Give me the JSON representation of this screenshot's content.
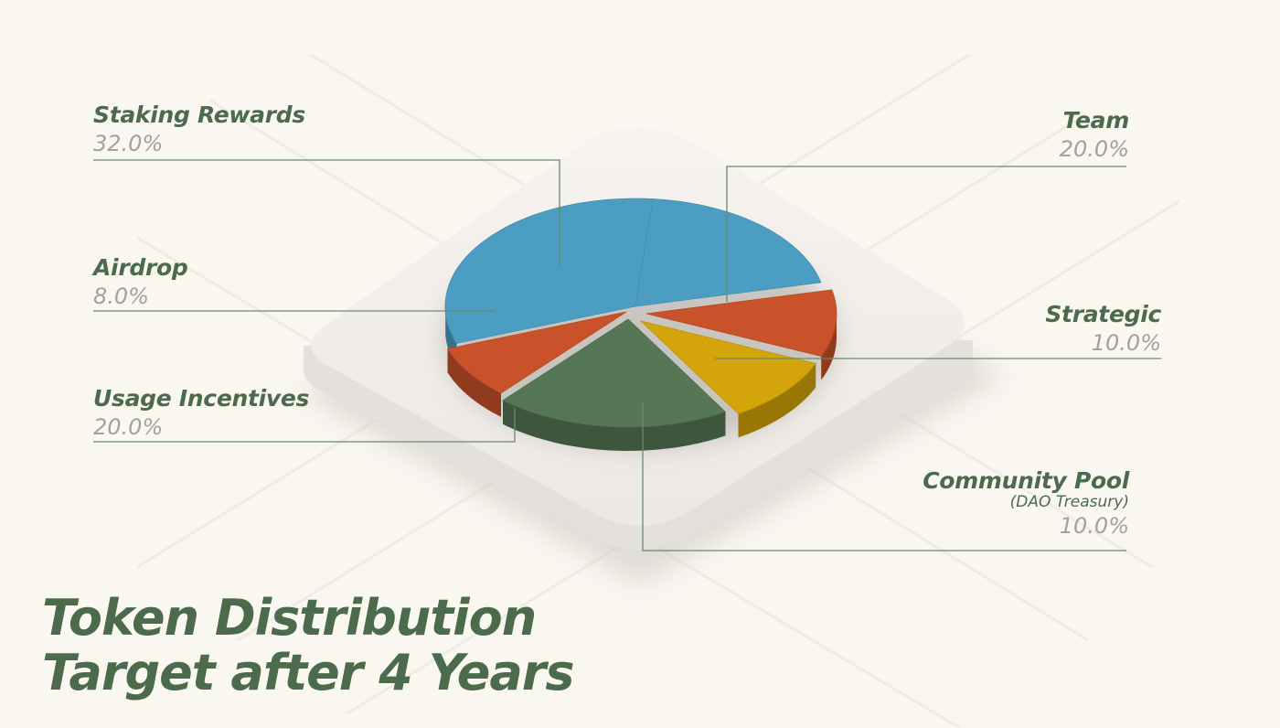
{
  "title_line1": "Token Distribution",
  "title_line2": "Target after 4 Years",
  "chart_data": {
    "type": "pie",
    "title": "Token Distribution Target after 4 Years",
    "slices": [
      {
        "label": "Staking Rewards",
        "value": 32.0,
        "pct_text": "32.0%",
        "color": "#4b9ec2"
      },
      {
        "label": "Team",
        "value": 20.0,
        "pct_text": "20.0%",
        "color": "#4b9ec2"
      },
      {
        "label": "Strategic",
        "value": 10.0,
        "pct_text": "10.0%",
        "color": "#c9522a"
      },
      {
        "label": "Community Pool",
        "sublabel": "(DAO Treasury)",
        "value": 10.0,
        "pct_text": "10.0%",
        "color": "#d3a50a"
      },
      {
        "label": "Usage Incentives",
        "value": 20.0,
        "pct_text": "20.0%",
        "color": "#567755"
      },
      {
        "label": "Airdrop",
        "value": 8.0,
        "pct_text": "8.0%",
        "color": "#c9522a"
      }
    ]
  },
  "colors": {
    "background": "#faf7f1",
    "label_green": "#4b6b4c",
    "percent_gray": "#a2a19b",
    "leader_line": "#6b8a69",
    "platform": "#f2efec"
  }
}
